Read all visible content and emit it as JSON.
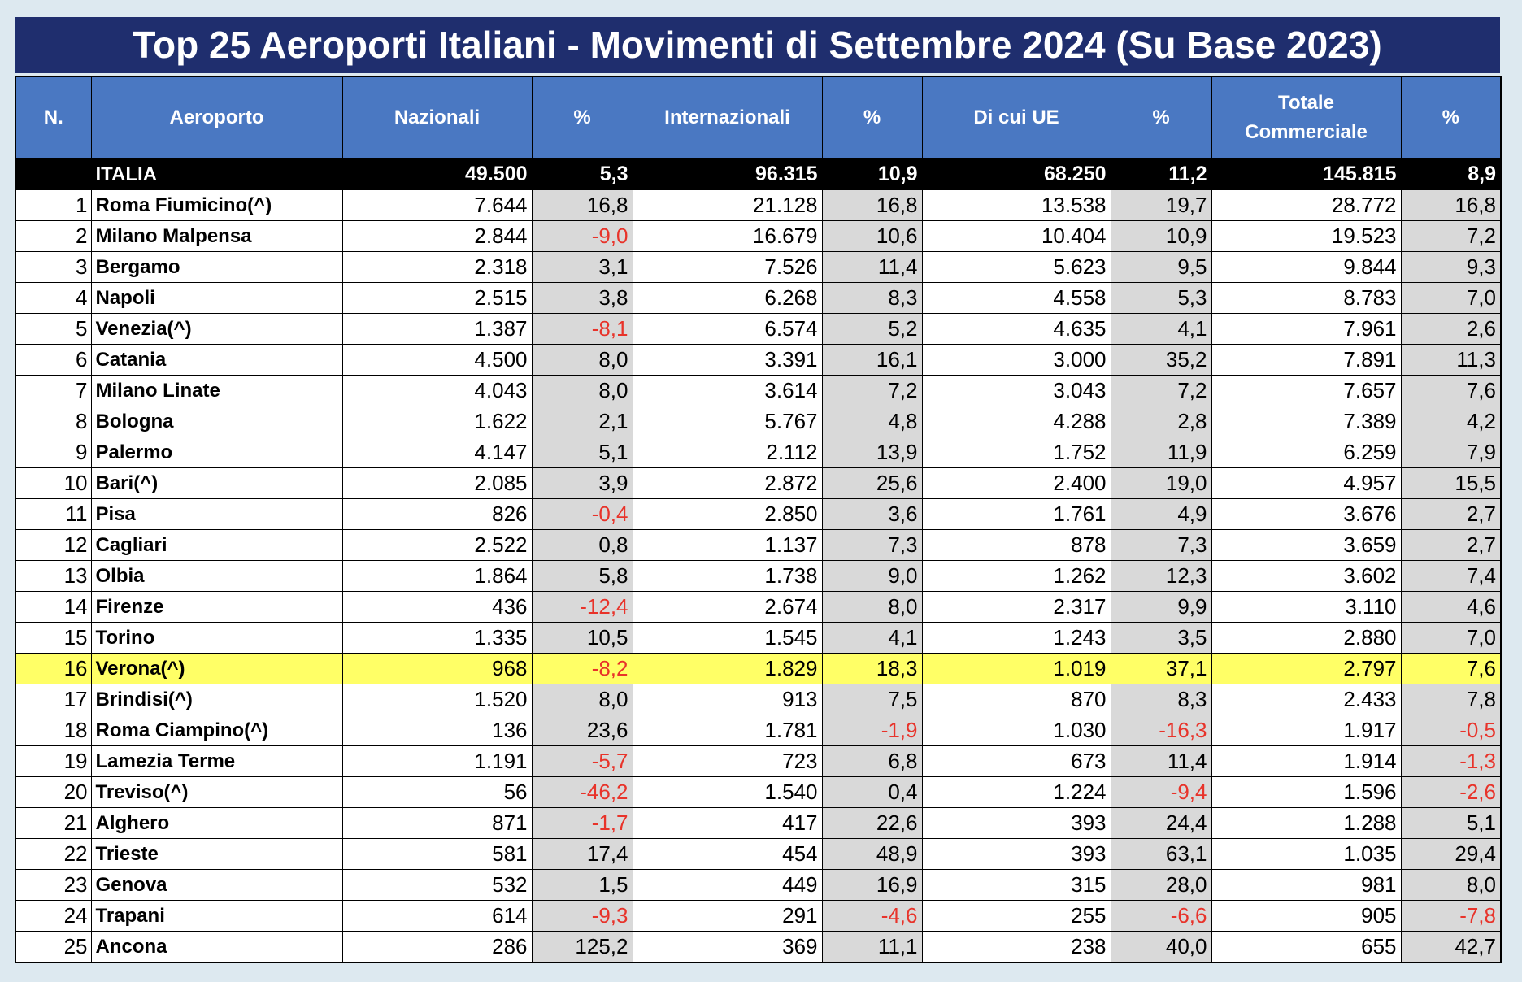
{
  "colors": {
    "page_bg": "#dde9f0",
    "title_bg": "#1f2e6e",
    "header_bg": "#4a78c2",
    "total_row_bg": "#000000",
    "pct_cell_bg": "#d9d9d9",
    "highlight_bg": "#ffff66",
    "negative_text": "#e8332a"
  },
  "chart_data": {
    "type": "table",
    "title": "Top 25 Aeroporti Italiani - Movimenti di Settembre 2024 (Su Base 2023)",
    "columns": [
      "N.",
      "Aeroporto",
      "Nazionali",
      "%",
      "Internazionali",
      "%",
      "Di cui UE",
      "%",
      "Totale Commerciale",
      "%"
    ],
    "total_row": {
      "label": "ITALIA",
      "values": [
        "49.500",
        "5,3",
        "96.315",
        "10,9",
        "68.250",
        "11,2",
        "145.815",
        "8,9"
      ]
    },
    "rows": [
      [
        "1",
        "Roma Fiumicino(^)",
        "7.644",
        "16,8",
        "21.128",
        "16,8",
        "13.538",
        "19,7",
        "28.772",
        "16,8"
      ],
      [
        "2",
        "Milano Malpensa",
        "2.844",
        "-9,0",
        "16.679",
        "10,6",
        "10.404",
        "10,9",
        "19.523",
        "7,2"
      ],
      [
        "3",
        "Bergamo",
        "2.318",
        "3,1",
        "7.526",
        "11,4",
        "5.623",
        "9,5",
        "9.844",
        "9,3"
      ],
      [
        "4",
        "Napoli",
        "2.515",
        "3,8",
        "6.268",
        "8,3",
        "4.558",
        "5,3",
        "8.783",
        "7,0"
      ],
      [
        "5",
        "Venezia(^)",
        "1.387",
        "-8,1",
        "6.574",
        "5,2",
        "4.635",
        "4,1",
        "7.961",
        "2,6"
      ],
      [
        "6",
        "Catania",
        "4.500",
        "8,0",
        "3.391",
        "16,1",
        "3.000",
        "35,2",
        "7.891",
        "11,3"
      ],
      [
        "7",
        "Milano Linate",
        "4.043",
        "8,0",
        "3.614",
        "7,2",
        "3.043",
        "7,2",
        "7.657",
        "7,6"
      ],
      [
        "8",
        "Bologna",
        "1.622",
        "2,1",
        "5.767",
        "4,8",
        "4.288",
        "2,8",
        "7.389",
        "4,2"
      ],
      [
        "9",
        "Palermo",
        "4.147",
        "5,1",
        "2.112",
        "13,9",
        "1.752",
        "11,9",
        "6.259",
        "7,9"
      ],
      [
        "10",
        "Bari(^)",
        "2.085",
        "3,9",
        "2.872",
        "25,6",
        "2.400",
        "19,0",
        "4.957",
        "15,5"
      ],
      [
        "11",
        "Pisa",
        "826",
        "-0,4",
        "2.850",
        "3,6",
        "1.761",
        "4,9",
        "3.676",
        "2,7"
      ],
      [
        "12",
        "Cagliari",
        "2.522",
        "0,8",
        "1.137",
        "7,3",
        "878",
        "7,3",
        "3.659",
        "2,7"
      ],
      [
        "13",
        "Olbia",
        "1.864",
        "5,8",
        "1.738",
        "9,0",
        "1.262",
        "12,3",
        "3.602",
        "7,4"
      ],
      [
        "14",
        "Firenze",
        "436",
        "-12,4",
        "2.674",
        "8,0",
        "2.317",
        "9,9",
        "3.110",
        "4,6"
      ],
      [
        "15",
        "Torino",
        "1.335",
        "10,5",
        "1.545",
        "4,1",
        "1.243",
        "3,5",
        "2.880",
        "7,0"
      ],
      [
        "16",
        "Verona(^)",
        "968",
        "-8,2",
        "1.829",
        "18,3",
        "1.019",
        "37,1",
        "2.797",
        "7,6"
      ],
      [
        "17",
        "Brindisi(^)",
        "1.520",
        "8,0",
        "913",
        "7,5",
        "870",
        "8,3",
        "2.433",
        "7,8"
      ],
      [
        "18",
        "Roma Ciampino(^)",
        "136",
        "23,6",
        "1.781",
        "-1,9",
        "1.030",
        "-16,3",
        "1.917",
        "-0,5"
      ],
      [
        "19",
        "Lamezia Terme",
        "1.191",
        "-5,7",
        "723",
        "6,8",
        "673",
        "11,4",
        "1.914",
        "-1,3"
      ],
      [
        "20",
        "Treviso(^)",
        "56",
        "-46,2",
        "1.540",
        "0,4",
        "1.224",
        "-9,4",
        "1.596",
        "-2,6"
      ],
      [
        "21",
        "Alghero",
        "871",
        "-1,7",
        "417",
        "22,6",
        "393",
        "24,4",
        "1.288",
        "5,1"
      ],
      [
        "22",
        "Trieste",
        "581",
        "17,4",
        "454",
        "48,9",
        "393",
        "63,1",
        "1.035",
        "29,4"
      ],
      [
        "23",
        "Genova",
        "532",
        "1,5",
        "449",
        "16,9",
        "315",
        "28,0",
        "981",
        "8,0"
      ],
      [
        "24",
        "Trapani",
        "614",
        "-9,3",
        "291",
        "-4,6",
        "255",
        "-6,6",
        "905",
        "-7,8"
      ],
      [
        "25",
        "Ancona",
        "286",
        "125,2",
        "369",
        "11,1",
        "238",
        "40,0",
        "655",
        "42,7"
      ]
    ],
    "highlighted_row": "Verona(^)"
  }
}
